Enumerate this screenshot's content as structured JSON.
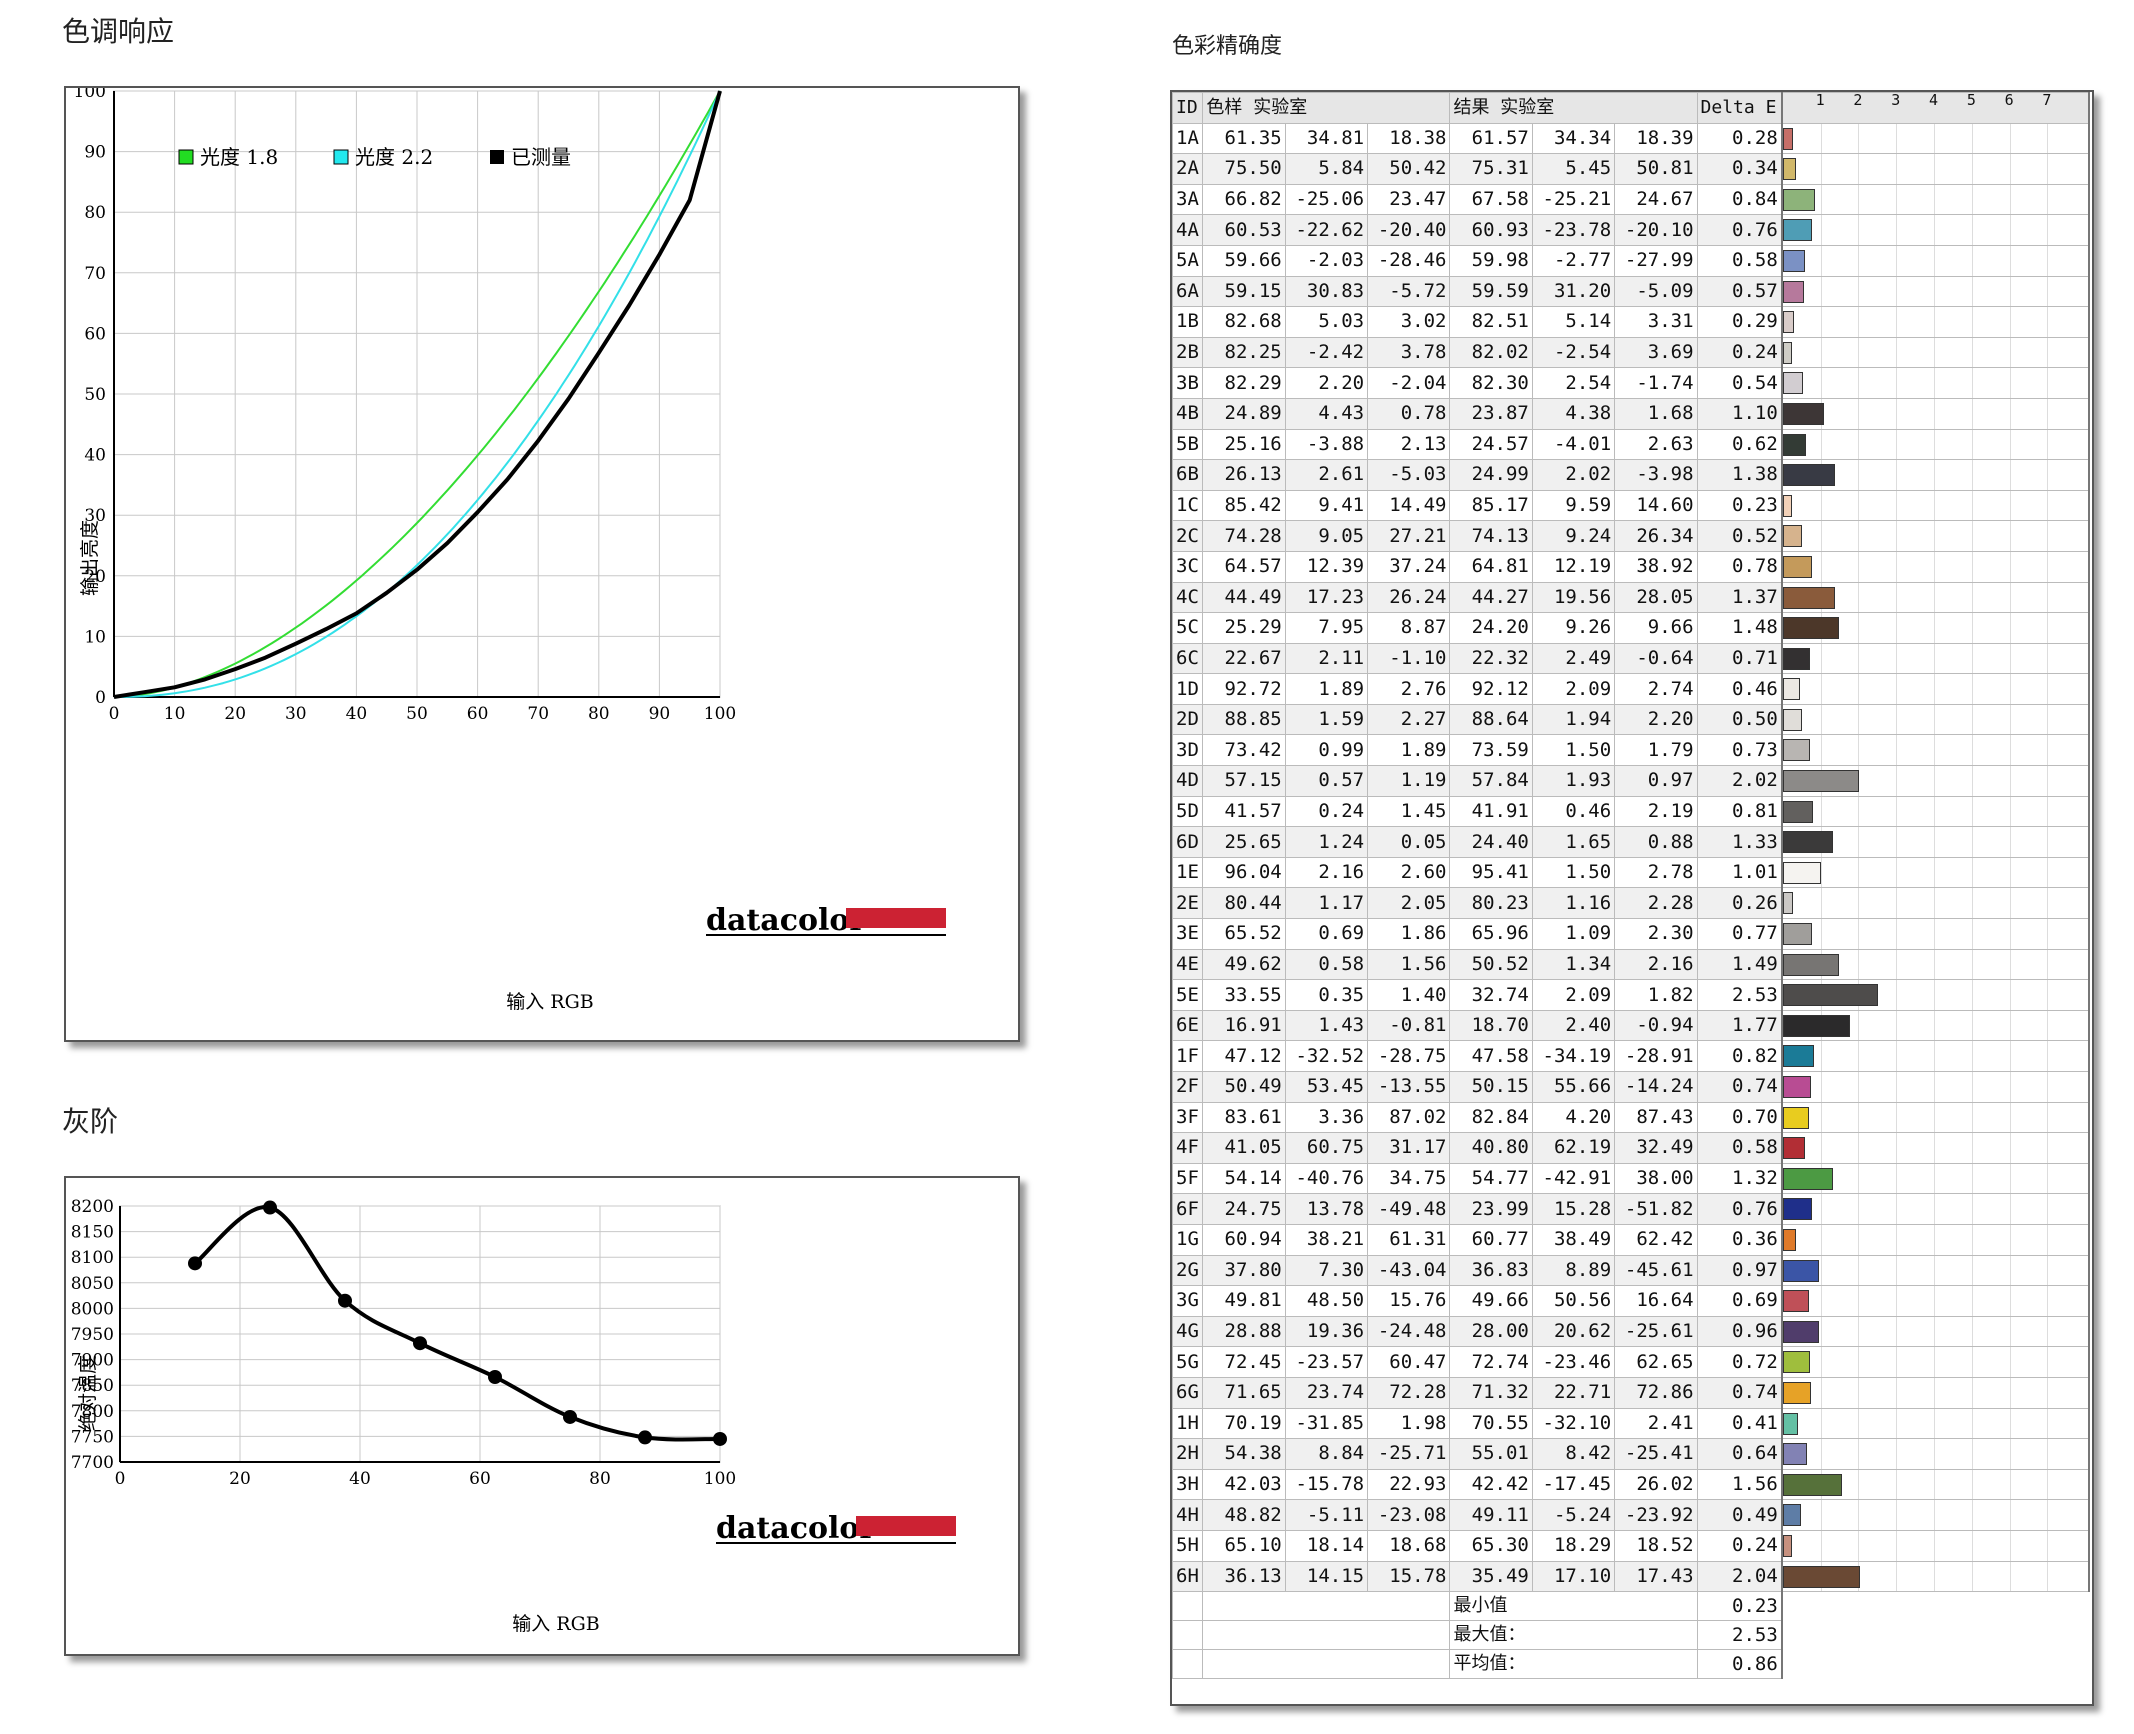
{
  "tone": {
    "title": "色调响应",
    "chart_data": {
      "type": "line",
      "xlabel": "输入 RGB",
      "ylabel": "输出亮度",
      "xlim": [
        0,
        100
      ],
      "ylim": [
        0,
        100
      ],
      "xticks": [
        "0",
        "10",
        "20",
        "30",
        "40",
        "50",
        "60",
        "70",
        "80",
        "90",
        "100"
      ],
      "yticks": [
        "0",
        "10",
        "20",
        "30",
        "40",
        "50",
        "60",
        "70",
        "80",
        "90",
        "100"
      ],
      "grid": true,
      "legend_position": "top-left",
      "series": [
        {
          "name": "光度 1.8",
          "gamma": 1.8,
          "color": "#33dd33"
        },
        {
          "name": "光度 2.2",
          "gamma": 2.2,
          "color": "#33e0e8"
        },
        {
          "name": "已测量",
          "color": "#000000",
          "x": [
            0,
            5,
            10,
            15,
            20,
            25,
            30,
            35,
            40,
            45,
            50,
            55,
            60,
            65,
            70,
            75,
            80,
            85,
            90,
            95,
            100
          ],
          "y": [
            0,
            0.8,
            1.6,
            2.9,
            4.6,
            6.5,
            8.8,
            11.2,
            13.8,
            17.2,
            21.0,
            25.4,
            30.5,
            36.0,
            42.3,
            49.2,
            56.8,
            64.6,
            73.0,
            82.0,
            100
          ]
        }
      ]
    },
    "logo": "datacolor"
  },
  "gray": {
    "title": "灰阶",
    "chart_data": {
      "type": "line",
      "xlabel": "输入 RGB",
      "ylabel": "绝对温度",
      "xlim": [
        0,
        100
      ],
      "ylim": [
        7700,
        8200
      ],
      "xticks": [
        "0",
        "20",
        "40",
        "60",
        "80",
        "100"
      ],
      "yticks": [
        "7700",
        "7750",
        "7800",
        "7850",
        "7900",
        "7950",
        "8000",
        "8050",
        "8100",
        "8150",
        "8200"
      ],
      "grid": true,
      "series": [
        {
          "x": [
            12.5,
            25,
            37.5,
            50,
            62.5,
            75,
            87.5,
            100
          ],
          "y": [
            8088,
            8197,
            8015,
            7932,
            7866,
            7788,
            7748,
            7745
          ]
        }
      ]
    },
    "logo": "datacolor"
  },
  "accuracy": {
    "title": "色彩精确度",
    "chart_data": {
      "type": "table",
      "headers": [
        "ID",
        "色样 实验室",
        "结果 实验室",
        "Delta E"
      ],
      "scale_ticks": [
        "1",
        "2",
        "3",
        "4",
        "5",
        "6",
        "7"
      ],
      "rows": [
        {
          "id": "1A",
          "s": [
            "61.35",
            "34.81",
            "18.38"
          ],
          "r": [
            "61.57",
            "34.34",
            "18.39"
          ],
          "de": "0.28",
          "color": "#c66f68"
        },
        {
          "id": "2A",
          "s": [
            "75.50",
            "5.84",
            "50.42"
          ],
          "r": [
            "75.31",
            "5.45",
            "50.81"
          ],
          "de": "0.34",
          "color": "#d1b86a"
        },
        {
          "id": "3A",
          "s": [
            "66.82",
            "-25.06",
            "23.47"
          ],
          "r": [
            "67.58",
            "-25.21",
            "24.67"
          ],
          "de": "0.84",
          "color": "#8db37a"
        },
        {
          "id": "4A",
          "s": [
            "60.53",
            "-22.62",
            "-20.40"
          ],
          "r": [
            "60.93",
            "-23.78",
            "-20.10"
          ],
          "de": "0.76",
          "color": "#4f9db5"
        },
        {
          "id": "5A",
          "s": [
            "59.66",
            "-2.03",
            "-28.46"
          ],
          "r": [
            "59.98",
            "-2.77",
            "-27.99"
          ],
          "de": "0.58",
          "color": "#7b91c4"
        },
        {
          "id": "6A",
          "s": [
            "59.15",
            "30.83",
            "-5.72"
          ],
          "r": [
            "59.59",
            "31.20",
            "-5.09"
          ],
          "de": "0.57",
          "color": "#b6799c"
        },
        {
          "id": "1B",
          "s": [
            "82.68",
            "5.03",
            "3.02"
          ],
          "r": [
            "82.51",
            "5.14",
            "3.31"
          ],
          "de": "0.29",
          "color": "#d9ccc9"
        },
        {
          "id": "2B",
          "s": [
            "82.25",
            "-2.42",
            "3.78"
          ],
          "r": [
            "82.02",
            "-2.54",
            "3.69"
          ],
          "de": "0.24",
          "color": "#cfcdc6"
        },
        {
          "id": "3B",
          "s": [
            "82.29",
            "2.20",
            "-2.04"
          ],
          "r": [
            "82.30",
            "2.54",
            "-1.74"
          ],
          "de": "0.54",
          "color": "#d2cdd1"
        },
        {
          "id": "4B",
          "s": [
            "24.89",
            "4.43",
            "0.78"
          ],
          "r": [
            "23.87",
            "4.38",
            "1.68"
          ],
          "de": "1.10",
          "color": "#3d3636"
        },
        {
          "id": "5B",
          "s": [
            "25.16",
            "-3.88",
            "2.13"
          ],
          "r": [
            "24.57",
            "-4.01",
            "2.63"
          ],
          "de": "0.62",
          "color": "#333b35"
        },
        {
          "id": "6B",
          "s": [
            "26.13",
            "2.61",
            "-5.03"
          ],
          "r": [
            "24.99",
            "2.02",
            "-3.98"
          ],
          "de": "1.38",
          "color": "#383a44"
        },
        {
          "id": "1C",
          "s": [
            "85.42",
            "9.41",
            "14.49"
          ],
          "r": [
            "85.17",
            "9.59",
            "14.60"
          ],
          "de": "0.23",
          "color": "#f2d1b8"
        },
        {
          "id": "2C",
          "s": [
            "74.28",
            "9.05",
            "27.21"
          ],
          "r": [
            "74.13",
            "9.24",
            "26.34"
          ],
          "de": "0.52",
          "color": "#d6b38d"
        },
        {
          "id": "3C",
          "s": [
            "64.57",
            "12.39",
            "37.24"
          ],
          "r": [
            "64.81",
            "12.19",
            "38.92"
          ],
          "de": "0.78",
          "color": "#c49a5b"
        },
        {
          "id": "4C",
          "s": [
            "44.49",
            "17.23",
            "26.24"
          ],
          "r": [
            "44.27",
            "19.56",
            "28.05"
          ],
          "de": "1.37",
          "color": "#8a5b3b"
        },
        {
          "id": "5C",
          "s": [
            "25.29",
            "7.95",
            "8.87"
          ],
          "r": [
            "24.20",
            "9.26",
            "9.66"
          ],
          "de": "1.48",
          "color": "#4c3729"
        },
        {
          "id": "6C",
          "s": [
            "22.67",
            "2.11",
            "-1.10"
          ],
          "r": [
            "22.32",
            "2.49",
            "-0.64"
          ],
          "de": "0.71",
          "color": "#333031"
        },
        {
          "id": "1D",
          "s": [
            "92.72",
            "1.89",
            "2.76"
          ],
          "r": [
            "92.12",
            "2.09",
            "2.74"
          ],
          "de": "0.46",
          "color": "#ece8e3"
        },
        {
          "id": "2D",
          "s": [
            "88.85",
            "1.59",
            "2.27"
          ],
          "r": [
            "88.64",
            "1.94",
            "2.20"
          ],
          "de": "0.50",
          "color": "#e0ddd9"
        },
        {
          "id": "3D",
          "s": [
            "73.42",
            "0.99",
            "1.89"
          ],
          "r": [
            "73.59",
            "1.50",
            "1.79"
          ],
          "de": "0.73",
          "color": "#b8b5b2"
        },
        {
          "id": "4D",
          "s": [
            "57.15",
            "0.57",
            "1.19"
          ],
          "r": [
            "57.84",
            "1.93",
            "0.97"
          ],
          "de": "2.02",
          "color": "#8c8a88"
        },
        {
          "id": "5D",
          "s": [
            "41.57",
            "0.24",
            "1.45"
          ],
          "r": [
            "41.91",
            "0.46",
            "2.19"
          ],
          "de": "0.81",
          "color": "#62605e"
        },
        {
          "id": "6D",
          "s": [
            "25.65",
            "1.24",
            "0.05"
          ],
          "r": [
            "24.40",
            "1.65",
            "0.88"
          ],
          "de": "1.33",
          "color": "#3b3a3a"
        },
        {
          "id": "1E",
          "s": [
            "96.04",
            "2.16",
            "2.60"
          ],
          "r": [
            "95.41",
            "1.50",
            "2.78"
          ],
          "de": "1.01",
          "color": "#f5f3f0"
        },
        {
          "id": "2E",
          "s": [
            "80.44",
            "1.17",
            "2.05"
          ],
          "r": [
            "80.23",
            "1.16",
            "2.28"
          ],
          "de": "0.26",
          "color": "#cbc8c5"
        },
        {
          "id": "3E",
          "s": [
            "65.52",
            "0.69",
            "1.86"
          ],
          "r": [
            "65.96",
            "1.09",
            "2.30"
          ],
          "de": "0.77",
          "color": "#a09e9b"
        },
        {
          "id": "4E",
          "s": [
            "49.62",
            "0.58",
            "1.56"
          ],
          "r": [
            "50.52",
            "1.34",
            "2.16"
          ],
          "de": "1.49",
          "color": "#777573"
        },
        {
          "id": "5E",
          "s": [
            "33.55",
            "0.35",
            "1.40"
          ],
          "r": [
            "32.74",
            "2.09",
            "1.82"
          ],
          "de": "2.53",
          "color": "#4e4c4b"
        },
        {
          "id": "6E",
          "s": [
            "16.91",
            "1.43",
            "-0.81"
          ],
          "r": [
            "18.70",
            "2.40",
            "-0.94"
          ],
          "de": "1.77",
          "color": "#2b2a2b"
        },
        {
          "id": "1F",
          "s": [
            "47.12",
            "-32.52",
            "-28.75"
          ],
          "r": [
            "47.58",
            "-34.19",
            "-28.91"
          ],
          "de": "0.82",
          "color": "#1b7b97"
        },
        {
          "id": "2F",
          "s": [
            "50.49",
            "53.45",
            "-13.55"
          ],
          "r": [
            "50.15",
            "55.66",
            "-14.24"
          ],
          "de": "0.74",
          "color": "#b84c93"
        },
        {
          "id": "3F",
          "s": [
            "83.61",
            "3.36",
            "87.02"
          ],
          "r": [
            "82.84",
            "4.20",
            "87.43"
          ],
          "de": "0.70",
          "color": "#e8cc1f"
        },
        {
          "id": "4F",
          "s": [
            "41.05",
            "60.75",
            "31.17"
          ],
          "r": [
            "40.80",
            "62.19",
            "32.49"
          ],
          "de": "0.58",
          "color": "#b22e35"
        },
        {
          "id": "5F",
          "s": [
            "54.14",
            "-40.76",
            "34.75"
          ],
          "r": [
            "54.77",
            "-42.91",
            "38.00"
          ],
          "de": "1.32",
          "color": "#4c9a43"
        },
        {
          "id": "6F",
          "s": [
            "24.75",
            "13.78",
            "-49.48"
          ],
          "r": [
            "23.99",
            "15.28",
            "-51.82"
          ],
          "de": "0.76",
          "color": "#1f2f8a"
        },
        {
          "id": "1G",
          "s": [
            "60.94",
            "38.21",
            "61.31"
          ],
          "r": [
            "60.77",
            "38.49",
            "62.42"
          ],
          "de": "0.36",
          "color": "#df7a2a"
        },
        {
          "id": "2G",
          "s": [
            "37.80",
            "7.30",
            "-43.04"
          ],
          "r": [
            "36.83",
            "8.89",
            "-45.61"
          ],
          "de": "0.97",
          "color": "#3b55a6"
        },
        {
          "id": "3G",
          "s": [
            "49.81",
            "48.50",
            "15.76"
          ],
          "r": [
            "49.66",
            "50.56",
            "16.64"
          ],
          "de": "0.69",
          "color": "#bf5058"
        },
        {
          "id": "4G",
          "s": [
            "28.88",
            "19.36",
            "-24.48"
          ],
          "r": [
            "28.00",
            "20.62",
            "-25.61"
          ],
          "de": "0.96",
          "color": "#503d6b"
        },
        {
          "id": "5G",
          "s": [
            "72.45",
            "-23.57",
            "60.47"
          ],
          "r": [
            "72.74",
            "-23.46",
            "62.65"
          ],
          "de": "0.72",
          "color": "#9fbe3d"
        },
        {
          "id": "6G",
          "s": [
            "71.65",
            "23.74",
            "72.28"
          ],
          "r": [
            "71.32",
            "22.71",
            "72.86"
          ],
          "de": "0.74",
          "color": "#e6a227"
        },
        {
          "id": "1H",
          "s": [
            "70.19",
            "-31.85",
            "1.98"
          ],
          "r": [
            "70.55",
            "-32.10",
            "2.41"
          ],
          "de": "0.41",
          "color": "#64c0a4"
        },
        {
          "id": "2H",
          "s": [
            "54.38",
            "8.84",
            "-25.71"
          ],
          "r": [
            "55.01",
            "8.42",
            "-25.41"
          ],
          "de": "0.64",
          "color": "#8282b4"
        },
        {
          "id": "3H",
          "s": [
            "42.03",
            "-15.78",
            "22.93"
          ],
          "r": [
            "42.42",
            "-17.45",
            "26.02"
          ],
          "de": "1.56",
          "color": "#56713a"
        },
        {
          "id": "4H",
          "s": [
            "48.82",
            "-5.11",
            "-23.08"
          ],
          "r": [
            "49.11",
            "-5.24",
            "-23.92"
          ],
          "de": "0.49",
          "color": "#5e7da6"
        },
        {
          "id": "5H",
          "s": [
            "65.10",
            "18.14",
            "18.68"
          ],
          "r": [
            "65.30",
            "18.29",
            "18.52"
          ],
          "de": "0.24",
          "color": "#c7917f"
        },
        {
          "id": "6H",
          "s": [
            "36.13",
            "14.15",
            "15.78"
          ],
          "r": [
            "35.49",
            "17.10",
            "17.43"
          ],
          "de": "2.04",
          "color": "#6a4934"
        }
      ],
      "summary": [
        {
          "label": "最小值",
          "value": "0.23"
        },
        {
          "label": "最大值：",
          "value": "2.53"
        },
        {
          "label": "平均值：",
          "value": "0.86"
        }
      ]
    }
  }
}
